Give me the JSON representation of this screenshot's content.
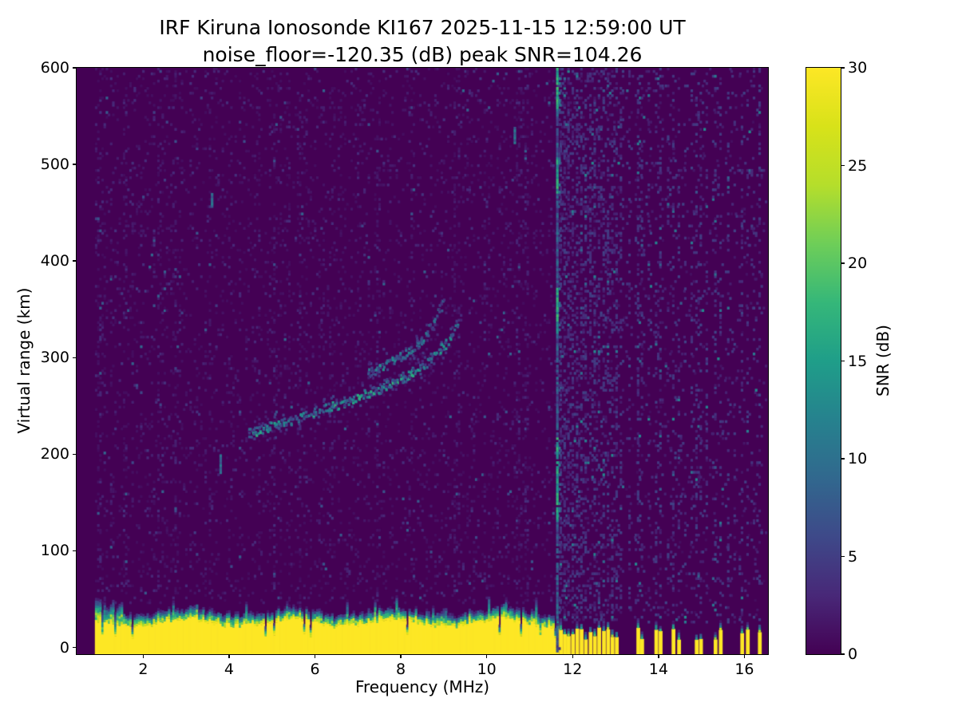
{
  "chart_data": {
    "type": "heatmap",
    "title": "IRF Kiruna Ionosonde KI167 2025-11-15 12:59:00  UT",
    "subtitle": "noise_floor=-120.35 (dB) peak SNR=104.26",
    "station": "IRF Kiruna Ionosonde KI167",
    "timestamp_ut": "2025-11-15 12:59:00",
    "noise_floor_db": -120.35,
    "peak_snr_db": 104.26,
    "xlabel": "Frequency (MHz)",
    "ylabel": "Virtual range (km)",
    "colorbar_label": "SNR (dB)",
    "xlim": [
      0.45,
      16.55
    ],
    "ylim": [
      -7,
      600
    ],
    "x_ticks": [
      2,
      4,
      6,
      8,
      10,
      12,
      14,
      16
    ],
    "y_ticks": [
      0,
      100,
      200,
      300,
      400,
      500,
      600
    ],
    "colorbar_ticks": [
      0,
      5,
      10,
      15,
      20,
      25,
      30
    ],
    "snr_range_db": [
      0,
      30
    ],
    "colormap": "viridis",
    "colormap_stops": [
      [
        0.0,
        "#440154"
      ],
      [
        0.1,
        "#482878"
      ],
      [
        0.2,
        "#3e4989"
      ],
      [
        0.3,
        "#31688e"
      ],
      [
        0.4,
        "#26828e"
      ],
      [
        0.5,
        "#1f9e89"
      ],
      [
        0.6,
        "#35b779"
      ],
      [
        0.7,
        "#6ece58"
      ],
      [
        0.8,
        "#b5de2b"
      ],
      [
        0.9,
        "#d8e219"
      ],
      [
        1.0,
        "#fde725"
      ]
    ],
    "data_freq_range_mhz": [
      0.88,
      16.5
    ],
    "features": {
      "ground_clutter": {
        "freq_range_mhz": [
          0.88,
          11.64
        ],
        "solid_top_km_mean": 27,
        "fringe_top_km": 60,
        "snr_db": 30
      },
      "echo_traces": [
        {
          "name": "F-trace-main",
          "snr_db_range": [
            6,
            18
          ],
          "points_mhz_km": [
            [
              4.45,
              220
            ],
            [
              5.2,
              230
            ],
            [
              6.0,
              242
            ],
            [
              6.8,
              254
            ],
            [
              7.5,
              266
            ],
            [
              8.1,
              279
            ],
            [
              8.6,
              293
            ],
            [
              9.0,
              310
            ],
            [
              9.2,
              323
            ],
            [
              9.32,
              336
            ]
          ]
        },
        {
          "name": "F-trace-upper",
          "snr_db_range": [
            5,
            14
          ],
          "points_mhz_km": [
            [
              7.2,
              282
            ],
            [
              7.7,
              292
            ],
            [
              8.1,
              302
            ],
            [
              8.45,
              315
            ],
            [
              8.7,
              330
            ],
            [
              8.85,
              344
            ],
            [
              8.97,
              357
            ]
          ]
        }
      ],
      "interference_line": {
        "freq_mhz": 11.62,
        "snr_db_base": 7,
        "bright_segments_km": [
          [
            130,
            215
          ],
          [
            325,
            370
          ],
          [
            470,
            505
          ],
          [
            555,
            600
          ]
        ]
      },
      "rfi_bars": [
        [
          11.7,
          1,
          0.8
        ],
        [
          11.79,
          1,
          0.7
        ],
        [
          11.88,
          1,
          0.75
        ],
        [
          11.98,
          1,
          0.65
        ],
        [
          12.08,
          1,
          0.7
        ],
        [
          12.18,
          1,
          0.6
        ],
        [
          12.28,
          1,
          0.7
        ],
        [
          12.39,
          1,
          0.6
        ],
        [
          12.49,
          1,
          0.65
        ],
        [
          12.59,
          1,
          0.6
        ],
        [
          12.7,
          1,
          0.55
        ],
        [
          12.8,
          1,
          0.6
        ],
        [
          12.9,
          1,
          0.5
        ],
        [
          13.0,
          1,
          0.55
        ],
        [
          13.1,
          0,
          0.45
        ],
        [
          13.3,
          0,
          0.35
        ],
        [
          13.5,
          1,
          0.5
        ],
        [
          13.59,
          1,
          0.45
        ],
        [
          13.75,
          0,
          0.3
        ],
        [
          13.92,
          1,
          0.45
        ],
        [
          14.02,
          1,
          0.4
        ],
        [
          14.2,
          0,
          0.3
        ],
        [
          14.32,
          1,
          0.45
        ],
        [
          14.45,
          1,
          0.4
        ],
        [
          14.6,
          0,
          0.3
        ],
        [
          14.75,
          0,
          0.3
        ],
        [
          14.86,
          1,
          0.4
        ],
        [
          14.96,
          1,
          0.35
        ],
        [
          15.1,
          0,
          0.3
        ],
        [
          15.3,
          1,
          0.4
        ],
        [
          15.42,
          1,
          0.35
        ],
        [
          15.6,
          0,
          0.3
        ],
        [
          15.75,
          0,
          0.25
        ],
        [
          15.92,
          1,
          0.4
        ],
        [
          16.05,
          1,
          0.35
        ],
        [
          16.2,
          0,
          0.3
        ],
        [
          16.33,
          1,
          0.35
        ]
      ],
      "noise_speckle": {
        "probability": 0.12,
        "snr_db_max": 6
      }
    }
  }
}
